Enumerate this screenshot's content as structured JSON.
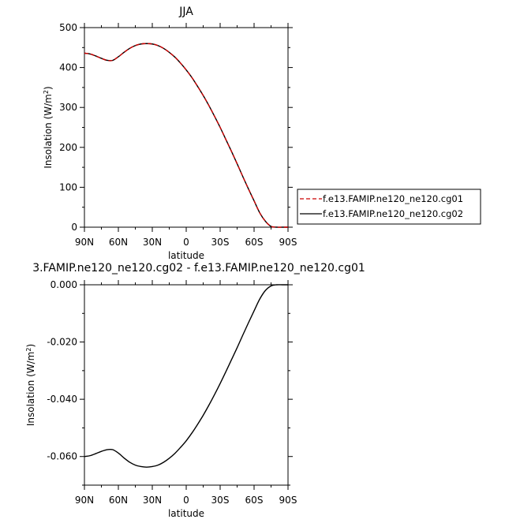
{
  "chart_data": [
    {
      "type": "line",
      "title": "JJA",
      "xlabel": "latitude",
      "ylabel": "Insolation (W/m",
      "ylabel_sup": "2",
      "ylabel_close": ")",
      "xlim": [
        90,
        -90
      ],
      "ylim": [
        0,
        500
      ],
      "xticks": [
        {
          "value": 90,
          "label": "90N"
        },
        {
          "value": 60,
          "label": "60N"
        },
        {
          "value": 30,
          "label": "30N"
        },
        {
          "value": 0,
          "label": "0"
        },
        {
          "value": -30,
          "label": "30S"
        },
        {
          "value": -60,
          "label": "60S"
        },
        {
          "value": -90,
          "label": "90S"
        }
      ],
      "yticks": [
        {
          "value": 0,
          "label": "0"
        },
        {
          "value": 100,
          "label": "100"
        },
        {
          "value": 200,
          "label": "200"
        },
        {
          "value": 300,
          "label": "300"
        },
        {
          "value": 400,
          "label": "400"
        },
        {
          "value": 500,
          "label": "500"
        }
      ],
      "legend_position": "right",
      "series": [
        {
          "name": "f.e13.FAMIP.ne120_ne120.cg01",
          "color": "#cc0000",
          "dash": "dashed",
          "x": [
            90,
            85,
            80,
            75,
            70,
            65,
            60,
            55,
            50,
            45,
            40,
            35,
            30,
            25,
            20,
            15,
            10,
            5,
            0,
            -5,
            -10,
            -15,
            -20,
            -25,
            -30,
            -35,
            -40,
            -45,
            -50,
            -55,
            -60,
            -65,
            -70,
            -75,
            -80,
            -85,
            -90
          ],
          "y": [
            436,
            434,
            429,
            423,
            418,
            418,
            427,
            438,
            448,
            455,
            459,
            460,
            459,
            455,
            448,
            438,
            426,
            411,
            394,
            375,
            353,
            330,
            305,
            278,
            250,
            220,
            190,
            159,
            127,
            96,
            66,
            36,
            15,
            2,
            0,
            0,
            0
          ]
        },
        {
          "name": "f.e13.FAMIP.ne120_ne120.cg02",
          "color": "#000000",
          "dash": "solid",
          "x": [
            90,
            85,
            80,
            75,
            70,
            65,
            60,
            55,
            50,
            45,
            40,
            35,
            30,
            25,
            20,
            15,
            10,
            5,
            0,
            -5,
            -10,
            -15,
            -20,
            -25,
            -30,
            -35,
            -40,
            -45,
            -50,
            -55,
            -60,
            -65,
            -70,
            -75,
            -80,
            -85,
            -90
          ],
          "y": [
            436,
            434,
            429,
            423,
            418,
            418,
            427,
            438,
            448,
            455,
            459,
            460,
            459,
            455,
            448,
            438,
            426,
            411,
            394,
            375,
            353,
            330,
            305,
            278,
            250,
            220,
            190,
            159,
            127,
            96,
            66,
            36,
            15,
            2,
            0,
            0,
            0
          ]
        }
      ]
    },
    {
      "type": "line",
      "title": "3.FAMIP.ne120_ne120.cg02 - f.e13.FAMIP.ne120_ne120.cg01",
      "xlabel": "latitude",
      "ylabel": "Insolation (W/m",
      "ylabel_sup": "2",
      "ylabel_close": ")",
      "xlim": [
        90,
        -90
      ],
      "ylim": [
        -0.07,
        0.0
      ],
      "xticks": [
        {
          "value": 90,
          "label": "90N"
        },
        {
          "value": 60,
          "label": "60N"
        },
        {
          "value": 30,
          "label": "30N"
        },
        {
          "value": 0,
          "label": "0"
        },
        {
          "value": -30,
          "label": "30S"
        },
        {
          "value": -60,
          "label": "60S"
        },
        {
          "value": -90,
          "label": "90S"
        }
      ],
      "yticks": [
        {
          "value": 0.0,
          "label": "0.000"
        },
        {
          "value": -0.02,
          "label": "-0.020"
        },
        {
          "value": -0.04,
          "label": "-0.040"
        },
        {
          "value": -0.06,
          "label": "-0.060"
        }
      ],
      "series": [
        {
          "color": "#000000",
          "dash": "solid",
          "x": [
            90,
            85,
            80,
            75,
            70,
            65,
            60,
            55,
            50,
            45,
            40,
            35,
            30,
            25,
            20,
            15,
            10,
            5,
            0,
            -5,
            -10,
            -15,
            -20,
            -25,
            -30,
            -35,
            -40,
            -45,
            -50,
            -55,
            -60,
            -65,
            -70,
            -75,
            -80,
            -85,
            -90
          ],
          "y": [
            -0.06,
            -0.0597,
            -0.059,
            -0.0582,
            -0.0576,
            -0.0576,
            -0.0588,
            -0.0605,
            -0.062,
            -0.063,
            -0.0635,
            -0.0637,
            -0.0635,
            -0.063,
            -0.062,
            -0.0606,
            -0.0589,
            -0.0568,
            -0.0545,
            -0.0518,
            -0.0488,
            -0.0456,
            -0.0421,
            -0.0384,
            -0.0345,
            -0.0304,
            -0.0262,
            -0.022,
            -0.0176,
            -0.0133,
            -0.0091,
            -0.005,
            -0.002,
            -0.0004,
            0.0,
            0.0,
            0.0
          ]
        }
      ]
    }
  ]
}
